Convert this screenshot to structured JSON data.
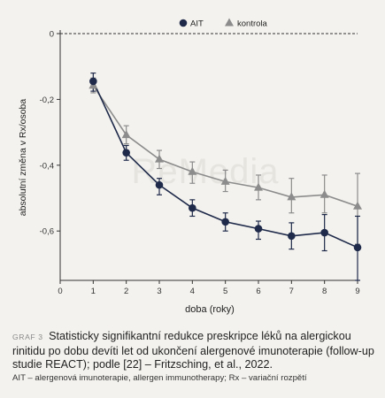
{
  "chart_data": {
    "type": "line",
    "legend": {
      "placement": "top-center",
      "entries": [
        "AIT",
        "kontrola"
      ]
    },
    "xlabel": "doba (roky)",
    "ylabel": "absolutní změna v Rx/osoba",
    "xlim": [
      0,
      9
    ],
    "ylim": [
      -0.75,
      0
    ],
    "x_ticks": [
      "0",
      "1",
      "2",
      "3",
      "4",
      "5",
      "6",
      "7",
      "8",
      "9"
    ],
    "y_ticks": [
      "0",
      "-0,2",
      "-0,4",
      "-0,6"
    ],
    "y_tick_values": [
      0,
      -0.2,
      -0.4,
      -0.6
    ],
    "watermark": "ReMedia",
    "x": [
      1,
      2,
      3,
      4,
      5,
      6,
      7,
      8,
      9
    ],
    "series": [
      {
        "name": "AIT",
        "marker": "circle",
        "color": "#1f2a4a",
        "values": [
          -0.145,
          -0.362,
          -0.46,
          -0.53,
          -0.572,
          -0.593,
          -0.615,
          -0.605,
          -0.65
        ],
        "err_low": [
          -0.175,
          -0.385,
          -0.49,
          -0.555,
          -0.6,
          -0.625,
          -0.655,
          -0.66,
          -0.75
        ],
        "err_high": [
          -0.12,
          -0.34,
          -0.44,
          -0.505,
          -0.545,
          -0.57,
          -0.575,
          -0.55,
          -0.555
        ]
      },
      {
        "name": "kontrola",
        "marker": "triangle",
        "color": "#8c8c8c",
        "values": [
          -0.158,
          -0.308,
          -0.382,
          -0.42,
          -0.45,
          -0.468,
          -0.497,
          -0.49,
          -0.525
        ],
        "err_low": [
          -0.18,
          -0.335,
          -0.41,
          -0.455,
          -0.48,
          -0.505,
          -0.545,
          -0.545,
          -0.64
        ],
        "err_high": [
          -0.135,
          -0.28,
          -0.355,
          -0.39,
          -0.415,
          -0.43,
          -0.44,
          -0.43,
          -0.425
        ]
      }
    ]
  },
  "caption": {
    "tag": "GRAF 3",
    "text": "Statisticky signifikantní redukce preskripce léků na alergickou rinitidu po dobu devíti let od ukončení alergenové imunoterapie (follow-up studie REACT); podle [22] – Fritzsching, et al., 2022."
  },
  "footnote": "AIT – alergenová imunoterapie, allergen immunotherapy; Rx – variační rozpětí"
}
